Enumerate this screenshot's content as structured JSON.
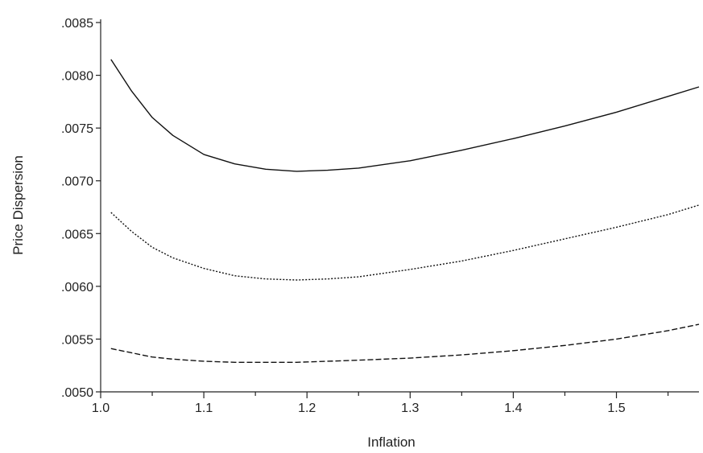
{
  "chart_data": {
    "type": "line",
    "title": "",
    "xlabel": "Inflation",
    "ylabel": "Price Dispersion",
    "xlim": [
      1.0,
      1.58
    ],
    "ylim": [
      0.005,
      0.0085
    ],
    "x_ticks": [
      1.0,
      1.1,
      1.2,
      1.3,
      1.4,
      1.5
    ],
    "x_tick_labels": [
      "1.0",
      "1.1",
      "1.2",
      "1.3",
      "1.4",
      "1.5"
    ],
    "x_minor_ticks": [
      1.05,
      1.15,
      1.25,
      1.35,
      1.45,
      1.55
    ],
    "y_ticks": [
      0.005,
      0.0055,
      0.006,
      0.0065,
      0.007,
      0.0075,
      0.008,
      0.0085
    ],
    "y_tick_labels": [
      ".0050",
      ".0055",
      ".0060",
      ".0065",
      ".0070",
      ".0075",
      ".0080",
      ".0085"
    ],
    "grid": false,
    "legend": "none",
    "series": [
      {
        "style": "solid",
        "color": "#111111",
        "x": [
          1.01,
          1.03,
          1.05,
          1.07,
          1.1,
          1.13,
          1.16,
          1.19,
          1.22,
          1.25,
          1.3,
          1.35,
          1.4,
          1.45,
          1.5,
          1.55,
          1.58
        ],
        "y": [
          0.00815,
          0.00785,
          0.0076,
          0.00743,
          0.00725,
          0.00716,
          0.00711,
          0.00709,
          0.0071,
          0.00712,
          0.00719,
          0.00729,
          0.0074,
          0.00752,
          0.00765,
          0.0078,
          0.00789
        ]
      },
      {
        "style": "dotted",
        "color": "#111111",
        "x": [
          1.01,
          1.03,
          1.05,
          1.07,
          1.1,
          1.13,
          1.16,
          1.19,
          1.22,
          1.25,
          1.3,
          1.35,
          1.4,
          1.45,
          1.5,
          1.55,
          1.58
        ],
        "y": [
          0.0067,
          0.00652,
          0.00637,
          0.00627,
          0.00617,
          0.0061,
          0.00607,
          0.00606,
          0.00607,
          0.00609,
          0.00616,
          0.00624,
          0.00634,
          0.00645,
          0.00656,
          0.00668,
          0.00677
        ]
      },
      {
        "style": "dashed",
        "color": "#111111",
        "x": [
          1.01,
          1.03,
          1.05,
          1.07,
          1.1,
          1.13,
          1.16,
          1.19,
          1.22,
          1.25,
          1.3,
          1.35,
          1.4,
          1.45,
          1.5,
          1.55,
          1.58
        ],
        "y": [
          0.00541,
          0.00537,
          0.00533,
          0.00531,
          0.00529,
          0.00528,
          0.00528,
          0.00528,
          0.00529,
          0.0053,
          0.00532,
          0.00535,
          0.00539,
          0.00544,
          0.0055,
          0.00558,
          0.00564
        ]
      }
    ]
  }
}
